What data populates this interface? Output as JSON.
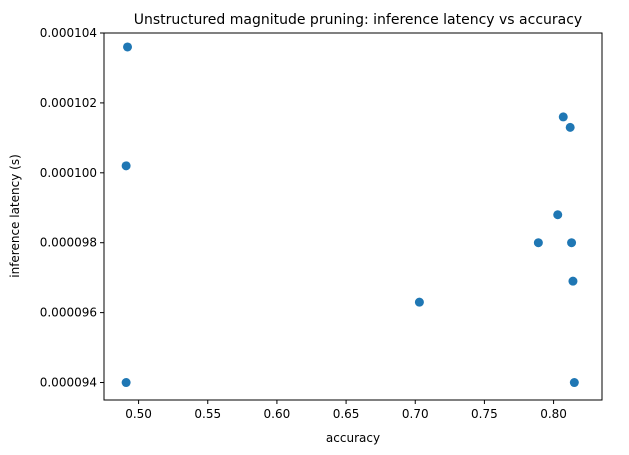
{
  "chart_data": {
    "type": "scatter",
    "title": "Unstructured magnitude pruning: inference latency vs accuracy",
    "xlabel": "accuracy",
    "ylabel": "inference latency (s)",
    "xlim": [
      0.475,
      0.835
    ],
    "ylim": [
      9.35e-05,
      0.000104
    ],
    "x_ticks": [
      0.5,
      0.55,
      0.6,
      0.65,
      0.7,
      0.75,
      0.8
    ],
    "x_tick_labels": [
      "0.50",
      "0.55",
      "0.60",
      "0.65",
      "0.70",
      "0.75",
      "0.80"
    ],
    "y_ticks": [
      9.4e-05,
      9.6e-05,
      9.8e-05,
      0.0001,
      0.000102,
      0.000104
    ],
    "y_tick_labels": [
      "0.000094",
      "0.000096",
      "0.000098",
      "0.000100",
      "0.000102",
      "0.000104"
    ],
    "grid": false,
    "marker_color": "#1f77b4",
    "points": [
      {
        "x": 0.492,
        "y": 0.0001036
      },
      {
        "x": 0.491,
        "y": 0.0001002
      },
      {
        "x": 0.491,
        "y": 9.4e-05
      },
      {
        "x": 0.703,
        "y": 9.63e-05
      },
      {
        "x": 0.789,
        "y": 9.8e-05
      },
      {
        "x": 0.803,
        "y": 9.88e-05
      },
      {
        "x": 0.807,
        "y": 0.0001016
      },
      {
        "x": 0.812,
        "y": 0.0001013
      },
      {
        "x": 0.813,
        "y": 9.8e-05
      },
      {
        "x": 0.814,
        "y": 9.69e-05
      },
      {
        "x": 0.815,
        "y": 9.4e-05
      }
    ]
  }
}
